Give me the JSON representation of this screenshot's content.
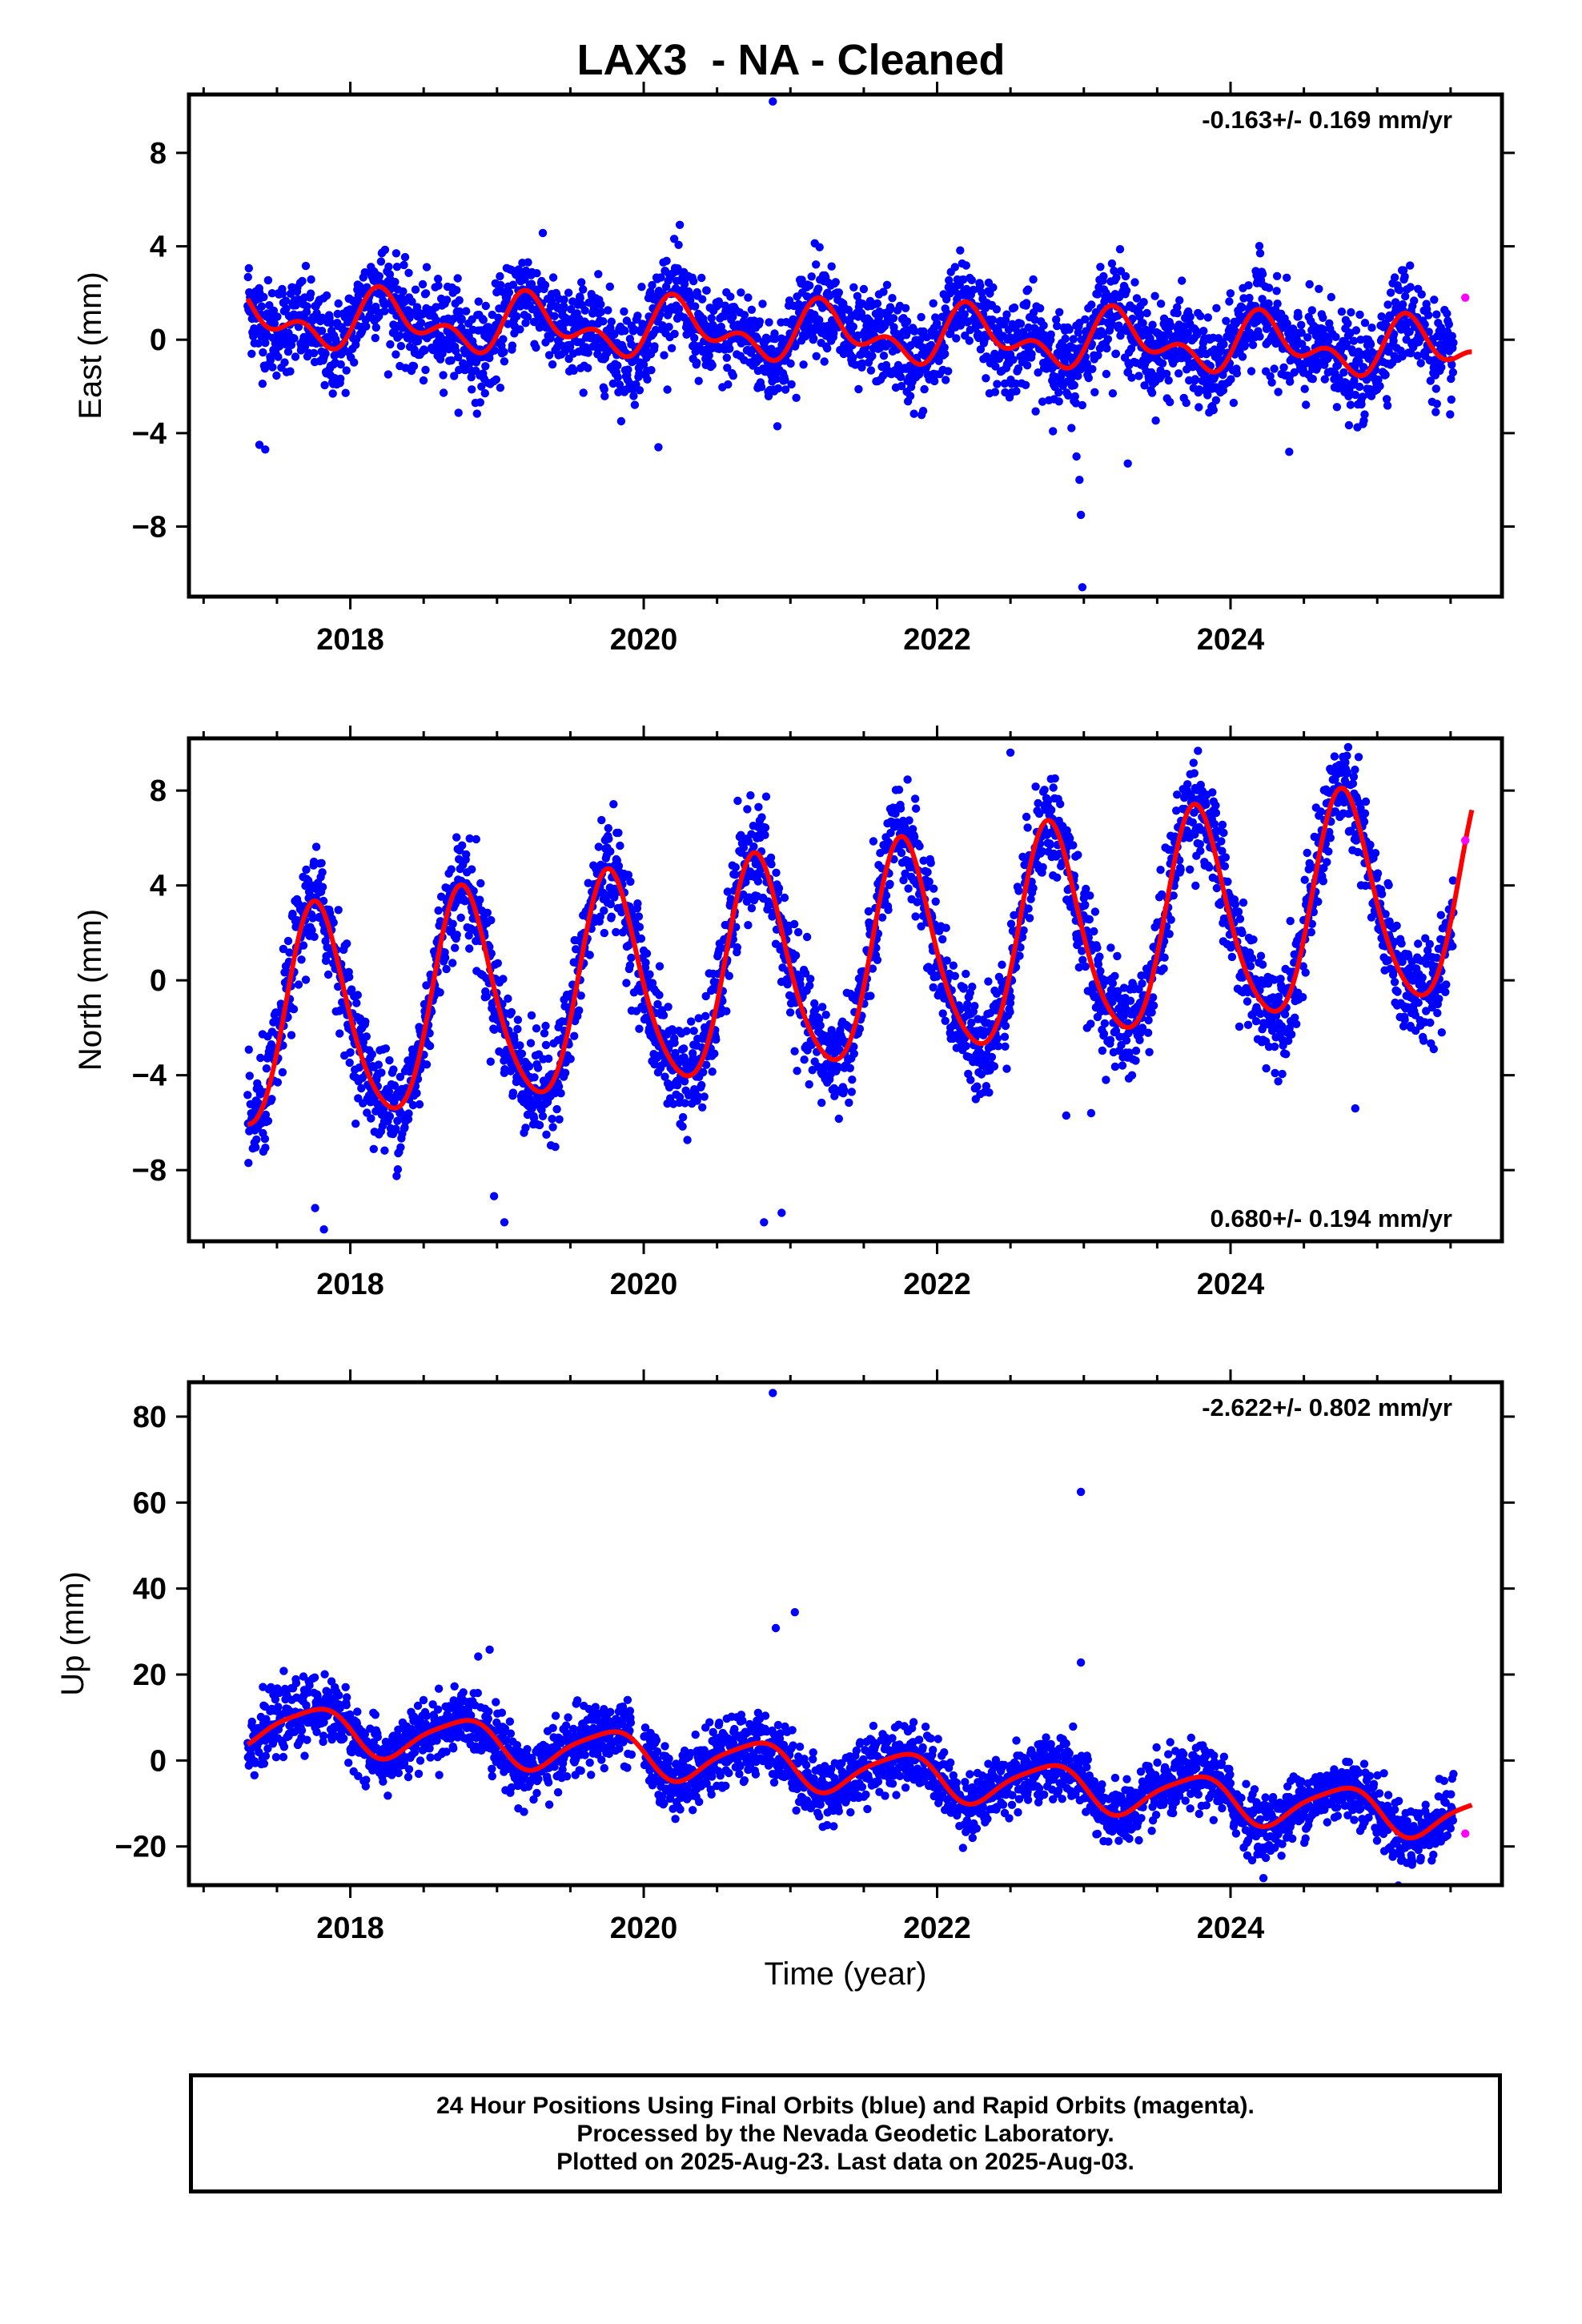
{
  "title": "LAX3  - NA - Cleaned",
  "caption": [
    "24 Hour Positions Using Final Orbits (blue) and Rapid Orbits (magenta).",
    "Processed by the Nevada Geodetic Laboratory.",
    "Plotted on 2025-Aug-23. Last data on 2025-Aug-03."
  ],
  "colors": {
    "final_orbits": "#0000ff",
    "rapid_orbits": "#ff00ff",
    "model_fit": "#ff0000",
    "axes": "#000000"
  },
  "chart_data": [
    {
      "type": "scatter",
      "component": "east",
      "ylabel": "East (mm)",
      "xlabel": "",
      "rate": "-0.163+/- 0.169 mm/yr",
      "xlim": [
        2016.9,
        2025.85
      ],
      "ylim": [
        -11,
        10.5
      ],
      "xticks": [
        2018,
        2020,
        2022,
        2024
      ],
      "yticks": [
        8,
        4,
        0,
        -4,
        -8
      ],
      "grid": false,
      "trend": {
        "t0": 2017.3,
        "offset": 0.9,
        "rate": -0.163,
        "annual_amp": 0.9,
        "annual_phase": 0.0,
        "semiannual_amp": 0.7,
        "semiannual_phase": 0.55
      },
      "scatter_sigma": 1.0,
      "outliers": [
        [
          2017.38,
          -4.5
        ],
        [
          2017.42,
          -4.7
        ],
        [
          2020.1,
          -4.6
        ],
        [
          2020.88,
          10.2
        ],
        [
          2022.95,
          -5.0
        ],
        [
          2022.97,
          -6.0
        ],
        [
          2022.98,
          -7.5
        ],
        [
          2022.99,
          -10.6
        ],
        [
          2023.3,
          -5.3
        ],
        [
          2024.4,
          -4.8
        ]
      ],
      "rapid_points": [
        [
          2025.6,
          1.8
        ]
      ]
    },
    {
      "type": "scatter",
      "component": "north",
      "ylabel": "North (mm)",
      "xlabel": "",
      "rate": "0.680+/- 0.194 mm/yr",
      "xlim": [
        2016.9,
        2025.85
      ],
      "ylim": [
        -11,
        10.2
      ],
      "xticks": [
        2018,
        2020,
        2022,
        2024
      ],
      "yticks": [
        8,
        4,
        0,
        -4,
        -8
      ],
      "grid": false,
      "trend": {
        "t0": 2017.3,
        "offset": -2.0,
        "rate": 0.68,
        "annual_amp": 4.5,
        "annual_phase": 0.52,
        "semiannual_amp": 0.6,
        "semiannual_phase": 0.1
      },
      "scatter_sigma": 1.1,
      "outliers": [
        [
          2017.76,
          -9.6
        ],
        [
          2017.82,
          -10.5
        ],
        [
          2018.98,
          -9.1
        ],
        [
          2019.05,
          -10.2
        ],
        [
          2020.82,
          -10.2
        ],
        [
          2020.94,
          -9.8
        ],
        [
          2022.88,
          -5.7
        ],
        [
          2023.05,
          -5.6
        ],
        [
          2024.85,
          -5.4
        ],
        [
          2022.5,
          9.6
        ]
      ],
      "rapid_points": [
        [
          2025.6,
          5.9
        ]
      ]
    },
    {
      "type": "scatter",
      "component": "up",
      "ylabel": "Up (mm)",
      "xlabel": "Time (year)",
      "rate": "-2.622+/- 0.802 mm/yr",
      "xlim": [
        2016.9,
        2025.85
      ],
      "ylim": [
        -29,
        88
      ],
      "xticks": [
        2018,
        2020,
        2022,
        2024
      ],
      "yticks": [
        80,
        60,
        40,
        20,
        0,
        -20
      ],
      "grid": false,
      "trend": {
        "t0": 2017.3,
        "offset": 8.5,
        "rate": -2.622,
        "annual_amp": 5.0,
        "annual_phase": 0.5,
        "semiannual_amp": 1.0,
        "semiannual_phase": 0.3
      },
      "scatter_sigma": 3.6,
      "outliers": [
        [
          2020.88,
          85.5
        ],
        [
          2022.98,
          62.5
        ],
        [
          2020.9,
          30.8
        ],
        [
          2021.03,
          34.5
        ],
        [
          2018.95,
          25.8
        ],
        [
          2022.98,
          22.8
        ]
      ],
      "rapid_points": [
        [
          2025.6,
          -17.0
        ]
      ]
    }
  ]
}
